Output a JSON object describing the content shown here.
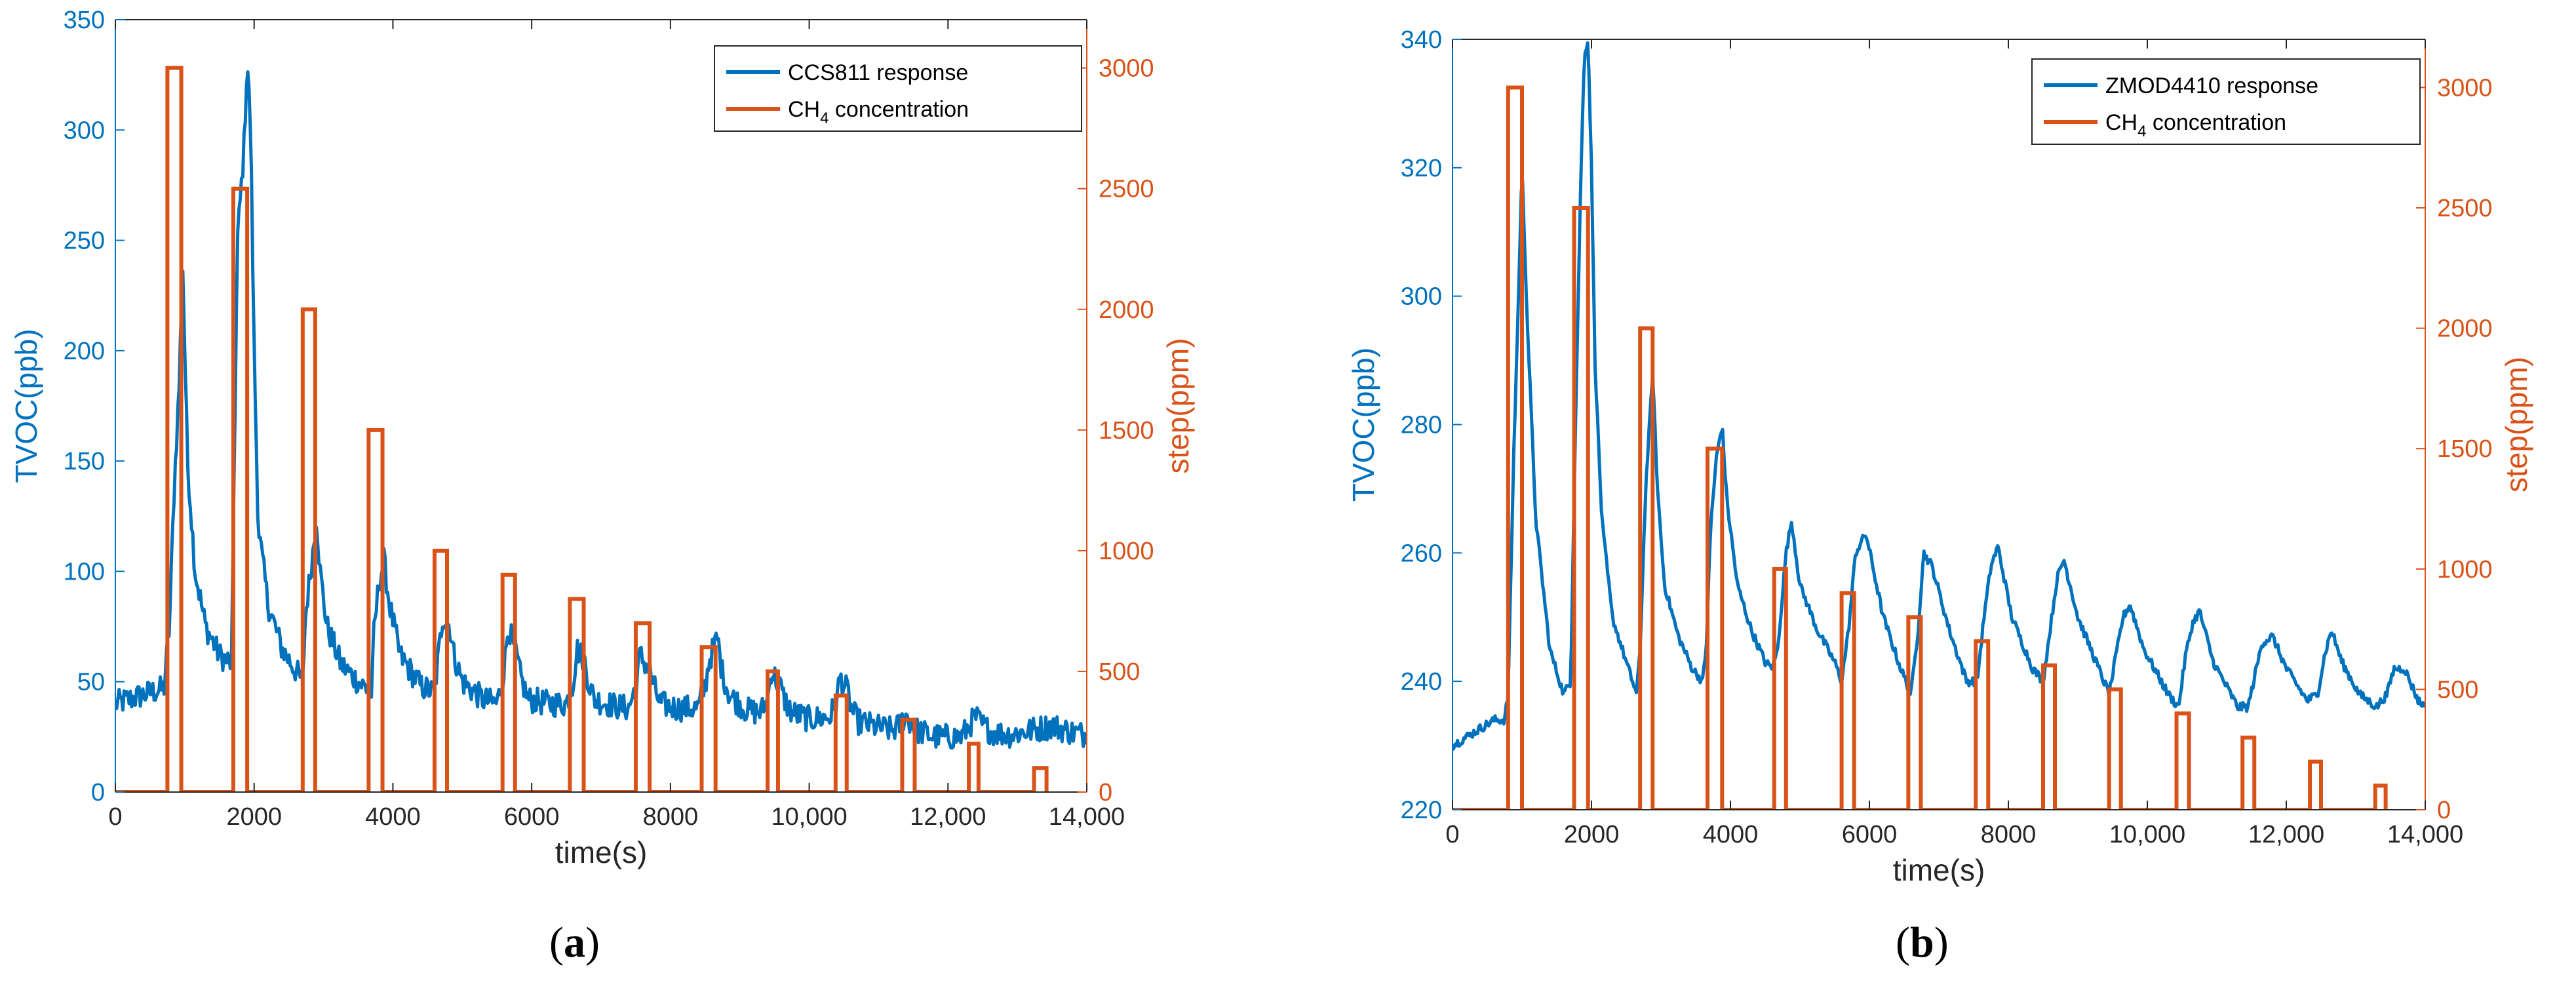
{
  "colors": {
    "tvoc": "#0072BD",
    "step": "#D95319",
    "axis": "#262626"
  },
  "captions": [
    {
      "open": "(",
      "letter": "a",
      "close": ")"
    },
    {
      "open": "(",
      "letter": "b",
      "close": ")"
    }
  ],
  "chart_data": [
    {
      "type": "line",
      "xlabel": "time(s)",
      "ylabel_left": "TVOC(ppb)",
      "ylabel_right": "step(ppm)",
      "xlim": [
        0,
        14000
      ],
      "ylim_left": [
        0,
        350
      ],
      "ylim_right": [
        0,
        3200
      ],
      "xticks": [
        0,
        2000,
        4000,
        6000,
        8000,
        10000,
        12000,
        14000
      ],
      "xtick_labels": [
        "0",
        "2000",
        "4000",
        "6000",
        "8000",
        "10,000",
        "12,000",
        "14,000"
      ],
      "yticks_left": [
        0,
        50,
        100,
        150,
        200,
        250,
        300,
        350
      ],
      "ytick_labels_left": [
        "0",
        "50",
        "100",
        "150",
        "200",
        "250",
        "300",
        "350"
      ],
      "yticks_right": [
        0,
        500,
        1000,
        1500,
        2000,
        2500,
        3000
      ],
      "ytick_labels_right": [
        "0",
        "500",
        "1000",
        "1500",
        "2000",
        "2500",
        "3000"
      ],
      "legend": {
        "position": "top-right",
        "entries": [
          {
            "label": "CCS811 response",
            "sub": "",
            "suffix": ""
          },
          {
            "label": "CH",
            "sub": "4",
            "suffix": " concentration"
          }
        ]
      },
      "series": [
        {
          "name": "CCS811 response",
          "axis": "left",
          "color": "#0072BD",
          "noise": 6,
          "x": [
            0,
            400,
            700,
            780,
            850,
            920,
            970,
            1040,
            1150,
            1300,
            1500,
            1680,
            1700,
            1760,
            1850,
            1900,
            1950,
            2000,
            2060,
            2200,
            2400,
            2600,
            2700,
            2740,
            2850,
            2900,
            2950,
            3050,
            3250,
            3500,
            3700,
            3720,
            3800,
            3870,
            3950,
            4100,
            4400,
            4600,
            4650,
            4720,
            4820,
            4880,
            5000,
            5300,
            5500,
            5600,
            5660,
            5780,
            5840,
            5950,
            6250,
            6500,
            6600,
            6650,
            6760,
            6820,
            6900,
            7200,
            7400,
            7500,
            7560,
            7700,
            7760,
            7850,
            8100,
            8400,
            8500,
            8560,
            8680,
            8740,
            8850,
            9100,
            9300,
            9400,
            9450,
            9580,
            9640,
            9750,
            10000,
            10300,
            10400,
            10440,
            10560,
            10600,
            10700,
            10900,
            11200,
            11300,
            11380,
            11450,
            11550,
            11800,
            12200,
            12300,
            12400,
            12500,
            12650,
            12900,
            13200,
            13500,
            13800,
            14000
          ],
          "y": [
            40,
            44,
            47,
            75,
            140,
            185,
            240,
            150,
            100,
            75,
            62,
            58,
            120,
            250,
            290,
            332,
            300,
            200,
            120,
            85,
            65,
            55,
            50,
            80,
            110,
            125,
            100,
            75,
            58,
            50,
            45,
            70,
            95,
            105,
            85,
            62,
            48,
            45,
            60,
            80,
            75,
            62,
            50,
            42,
            40,
            55,
            75,
            62,
            52,
            42,
            40,
            40,
            50,
            65,
            60,
            50,
            42,
            39,
            38,
            48,
            62,
            55,
            48,
            40,
            38,
            38,
            48,
            60,
            70,
            55,
            44,
            37,
            36,
            42,
            55,
            48,
            42,
            36,
            33,
            34,
            42,
            52,
            45,
            38,
            32,
            30,
            28,
            30,
            35,
            32,
            28,
            25,
            25,
            30,
            34,
            30,
            27,
            26,
            28,
            30,
            27,
            26
          ]
        },
        {
          "name": "CH4 concentration",
          "axis": "right",
          "color": "#D95319",
          "step": true,
          "pulses": [
            {
              "start": 750,
              "end": 950,
              "value": 3000
            },
            {
              "start": 1700,
              "end": 1900,
              "value": 2500
            },
            {
              "start": 2700,
              "end": 2880,
              "value": 2000
            },
            {
              "start": 3650,
              "end": 3850,
              "value": 1500
            },
            {
              "start": 4600,
              "end": 4780,
              "value": 1000
            },
            {
              "start": 5580,
              "end": 5760,
              "value": 900
            },
            {
              "start": 6550,
              "end": 6750,
              "value": 800
            },
            {
              "start": 7500,
              "end": 7700,
              "value": 700
            },
            {
              "start": 8450,
              "end": 8650,
              "value": 600
            },
            {
              "start": 9400,
              "end": 9550,
              "value": 500
            },
            {
              "start": 10380,
              "end": 10540,
              "value": 400
            },
            {
              "start": 11340,
              "end": 11520,
              "value": 300
            },
            {
              "start": 12300,
              "end": 12440,
              "value": 200
            },
            {
              "start": 13240,
              "end": 13420,
              "value": 100
            }
          ]
        }
      ]
    },
    {
      "type": "line",
      "xlabel": "time(s)",
      "ylabel_left": "TVOC(ppb)",
      "ylabel_right": "step(ppm)",
      "xlim": [
        0,
        14000
      ],
      "ylim_left": [
        220,
        340
      ],
      "ylim_right": [
        0,
        3200
      ],
      "xticks": [
        0,
        2000,
        4000,
        6000,
        8000,
        10000,
        12000,
        14000
      ],
      "xtick_labels": [
        "0",
        "2000",
        "4000",
        "6000",
        "8000",
        "10,000",
        "12,000",
        "14,000"
      ],
      "yticks_left": [
        220,
        240,
        260,
        280,
        300,
        320,
        340
      ],
      "ytick_labels_left": [
        "220",
        "240",
        "260",
        "280",
        "300",
        "320",
        "340"
      ],
      "yticks_right": [
        0,
        500,
        1000,
        1500,
        2000,
        2500,
        3000
      ],
      "ytick_labels_right": [
        "0",
        "500",
        "1000",
        "1500",
        "2000",
        "2500",
        "3000"
      ],
      "legend": {
        "position": "top-right",
        "entries": [
          {
            "label": "ZMOD4410 response",
            "sub": "",
            "suffix": ""
          },
          {
            "label": "CH",
            "sub": "4",
            "suffix": " concentration"
          }
        ]
      },
      "series": [
        {
          "name": "ZMOD4410 response",
          "axis": "left",
          "color": "#0072BD",
          "noise": 0.7,
          "x": [
            0,
            300,
            600,
            750,
            800,
            880,
            950,
            1000,
            1080,
            1200,
            1400,
            1600,
            1700,
            1760,
            1850,
            1900,
            1950,
            2000,
            2050,
            2150,
            2300,
            2500,
            2650,
            2700,
            2780,
            2880,
            2950,
            3050,
            3250,
            3450,
            3600,
            3650,
            3720,
            3800,
            3880,
            3950,
            4100,
            4300,
            4500,
            4600,
            4680,
            4800,
            4880,
            5000,
            5250,
            5500,
            5600,
            5700,
            5800,
            5950,
            6200,
            6450,
            6600,
            6700,
            6780,
            6900,
            7150,
            7400,
            7550,
            7650,
            7750,
            7850,
            8050,
            8350,
            8500,
            8600,
            8700,
            8800,
            9000,
            9300,
            9450,
            9550,
            9650,
            9750,
            9950,
            10300,
            10450,
            10550,
            10650,
            10750,
            10950,
            11300,
            11450,
            11550,
            11650,
            11800,
            12000,
            12300,
            12450,
            12550,
            12650,
            12800,
            13050,
            13300,
            13450,
            13550,
            13700,
            13900,
            14000
          ],
          "y": [
            230,
            232,
            234,
            234,
            238,
            275,
            300,
            320,
            295,
            265,
            245,
            238,
            240,
            275,
            320,
            338,
            340,
            320,
            290,
            265,
            250,
            243,
            238,
            245,
            270,
            288,
            270,
            255,
            247,
            242,
            240,
            245,
            265,
            275,
            280,
            268,
            255,
            248,
            243,
            242,
            245,
            260,
            265,
            255,
            248,
            243,
            240,
            248,
            260,
            263,
            250,
            242,
            238,
            248,
            260,
            258,
            248,
            240,
            240,
            250,
            258,
            261,
            250,
            242,
            240,
            248,
            256,
            259,
            250,
            242,
            238,
            244,
            250,
            252,
            245,
            238,
            236,
            244,
            249,
            251,
            243,
            236,
            236,
            241,
            246,
            247,
            242,
            237,
            238,
            244,
            248,
            243,
            238,
            236,
            238,
            242,
            242,
            237,
            236
          ]
        },
        {
          "name": "CH4 concentration",
          "axis": "right",
          "color": "#D95319",
          "step": true,
          "pulses": [
            {
              "start": 800,
              "end": 1000,
              "value": 3000
            },
            {
              "start": 1750,
              "end": 1950,
              "value": 2500
            },
            {
              "start": 2700,
              "end": 2880,
              "value": 2000
            },
            {
              "start": 3670,
              "end": 3880,
              "value": 1500
            },
            {
              "start": 4630,
              "end": 4800,
              "value": 1000
            },
            {
              "start": 5600,
              "end": 5780,
              "value": 900
            },
            {
              "start": 6560,
              "end": 6740,
              "value": 800
            },
            {
              "start": 7530,
              "end": 7710,
              "value": 700
            },
            {
              "start": 8500,
              "end": 8670,
              "value": 600
            },
            {
              "start": 9450,
              "end": 9620,
              "value": 500
            },
            {
              "start": 10420,
              "end": 10600,
              "value": 400
            },
            {
              "start": 11370,
              "end": 11540,
              "value": 300
            },
            {
              "start": 12340,
              "end": 12500,
              "value": 200
            },
            {
              "start": 13280,
              "end": 13430,
              "value": 100
            }
          ]
        }
      ]
    }
  ]
}
